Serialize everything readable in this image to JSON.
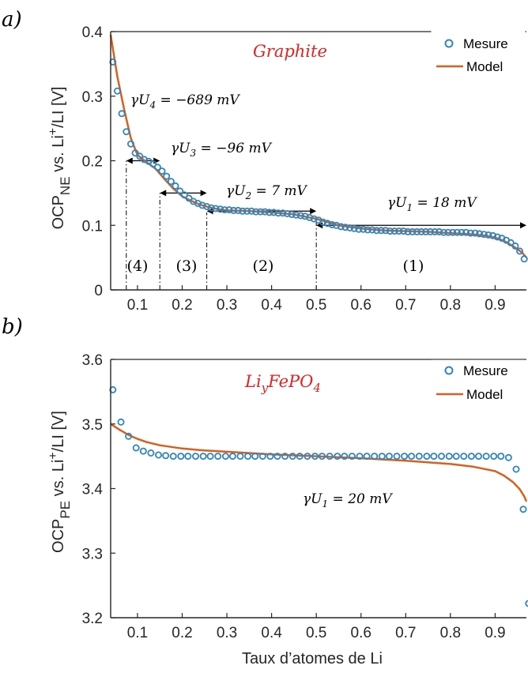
{
  "colors": {
    "measure": "#2E86C1",
    "model": "#D95F1E",
    "title_red": "#E8201E",
    "axis": "#262626"
  },
  "panels": [
    {
      "panel_label": "a)",
      "title_text": "Graphite",
      "ylabel": {
        "base": "OCP",
        "sub": "NE",
        "rest": " vs. Li",
        "sup": "+",
        "tail": "/LI [V]"
      },
      "legend": {
        "measure": "Mesure",
        "model": "Model"
      },
      "regions": [
        "(4)",
        "(3)",
        "(2)",
        "(1)"
      ],
      "annotations": [
        {
          "pre": "γU",
          "sub": "4",
          "post": " = −689 mV"
        },
        {
          "pre": "γU",
          "sub": "3",
          "post": " = −96 mV"
        },
        {
          "pre": "γU",
          "sub": "2",
          "post": " = 7 mV"
        },
        {
          "pre": "γU",
          "sub": "1",
          "post": " = 18 mV"
        }
      ]
    },
    {
      "panel_label": "b)",
      "title_text": {
        "a": "Li",
        "sub_y": "y",
        "b": "FePO",
        "sub_4": "4"
      },
      "ylabel": {
        "base": "OCP",
        "sub": "PE",
        "rest": " vs. Li",
        "sup": "+",
        "tail": "/LI [V]"
      },
      "legend": {
        "measure": "Mesure",
        "model": "Model"
      },
      "annotations": [
        {
          "pre": "γU",
          "sub": "1",
          "post": " = 20 mV"
        }
      ],
      "xlabel": "Taux d’atomes de Li"
    }
  ],
  "chart_data": [
    {
      "type": "scatter",
      "xlim": [
        0.04,
        0.97
      ],
      "ylim": [
        0,
        0.4
      ],
      "xticks": [
        "0.1",
        "0.2",
        "0.3",
        "0.4",
        "0.5",
        "0.6",
        "0.7",
        "0.8",
        "0.9"
      ],
      "xtick_values": [
        0.1,
        0.2,
        0.3,
        0.4,
        0.5,
        0.6,
        0.7,
        0.8,
        0.9
      ],
      "yticks": [
        "0",
        "0.1",
        "0.2",
        "0.3",
        "0.4"
      ],
      "ytick_values": [
        0,
        0.1,
        0.2,
        0.3,
        0.4
      ],
      "region_boundaries": [
        0.075,
        0.15,
        0.255,
        0.5
      ],
      "series": [
        {
          "name": "Mesure",
          "x": [
            0.045,
            0.055,
            0.065,
            0.075,
            0.085,
            0.095,
            0.105,
            0.115,
            0.125,
            0.135,
            0.145,
            0.155,
            0.165,
            0.175,
            0.185,
            0.195,
            0.205,
            0.215,
            0.225,
            0.235,
            0.245,
            0.255,
            0.265,
            0.275,
            0.285,
            0.295,
            0.305,
            0.315,
            0.325,
            0.335,
            0.345,
            0.355,
            0.365,
            0.375,
            0.385,
            0.395,
            0.405,
            0.415,
            0.425,
            0.435,
            0.445,
            0.455,
            0.465,
            0.475,
            0.485,
            0.495,
            0.505,
            0.515,
            0.525,
            0.535,
            0.545,
            0.555,
            0.565,
            0.575,
            0.585,
            0.595,
            0.605,
            0.615,
            0.625,
            0.635,
            0.645,
            0.655,
            0.665,
            0.675,
            0.685,
            0.695,
            0.705,
            0.715,
            0.725,
            0.735,
            0.745,
            0.755,
            0.765,
            0.775,
            0.785,
            0.795,
            0.805,
            0.815,
            0.825,
            0.835,
            0.845,
            0.855,
            0.865,
            0.875,
            0.885,
            0.895,
            0.905,
            0.915,
            0.925,
            0.935,
            0.945,
            0.955,
            0.965
          ],
          "y": [
            0.353,
            0.308,
            0.273,
            0.245,
            0.226,
            0.212,
            0.207,
            0.202,
            0.199,
            0.195,
            0.19,
            0.184,
            0.176,
            0.168,
            0.161,
            0.153,
            0.147,
            0.142,
            0.137,
            0.134,
            0.131,
            0.129,
            0.127,
            0.126,
            0.125,
            0.124,
            0.124,
            0.123,
            0.123,
            0.122,
            0.122,
            0.122,
            0.121,
            0.121,
            0.121,
            0.12,
            0.12,
            0.119,
            0.119,
            0.118,
            0.117,
            0.116,
            0.115,
            0.114,
            0.112,
            0.11,
            0.108,
            0.105,
            0.103,
            0.101,
            0.1,
            0.098,
            0.097,
            0.096,
            0.095,
            0.094,
            0.094,
            0.093,
            0.093,
            0.092,
            0.092,
            0.092,
            0.091,
            0.091,
            0.091,
            0.091,
            0.09,
            0.09,
            0.09,
            0.09,
            0.09,
            0.09,
            0.09,
            0.09,
            0.089,
            0.089,
            0.089,
            0.089,
            0.089,
            0.089,
            0.088,
            0.088,
            0.087,
            0.086,
            0.085,
            0.084,
            0.082,
            0.08,
            0.077,
            0.073,
            0.068,
            0.06,
            0.048
          ]
        },
        {
          "name": "Model",
          "x": [
            0.04,
            0.055,
            0.07,
            0.085,
            0.1,
            0.12,
            0.14,
            0.16,
            0.18,
            0.2,
            0.22,
            0.24,
            0.26,
            0.28,
            0.3,
            0.35,
            0.4,
            0.45,
            0.5,
            0.55,
            0.6,
            0.65,
            0.7,
            0.75,
            0.8,
            0.85,
            0.88,
            0.9,
            0.92,
            0.94,
            0.96,
            0.97
          ],
          "y": [
            0.395,
            0.33,
            0.28,
            0.235,
            0.209,
            0.198,
            0.188,
            0.172,
            0.157,
            0.145,
            0.138,
            0.132,
            0.128,
            0.125,
            0.123,
            0.122,
            0.12,
            0.117,
            0.11,
            0.1,
            0.095,
            0.092,
            0.091,
            0.09,
            0.088,
            0.086,
            0.084,
            0.081,
            0.076,
            0.068,
            0.058,
            0.05
          ]
        }
      ]
    },
    {
      "type": "scatter",
      "xlim": [
        0.04,
        0.97
      ],
      "ylim": [
        3.2,
        3.6
      ],
      "xticks": [
        "0.1",
        "0.2",
        "0.3",
        "0.4",
        "0.5",
        "0.6",
        "0.7",
        "0.8",
        "0.9"
      ],
      "xtick_values": [
        0.1,
        0.2,
        0.3,
        0.4,
        0.5,
        0.6,
        0.7,
        0.8,
        0.9
      ],
      "yticks": [
        "3.2",
        "3.3",
        "3.4",
        "3.5",
        "3.6"
      ],
      "ytick_values": [
        3.2,
        3.3,
        3.4,
        3.5,
        3.6
      ],
      "series": [
        {
          "name": "Mesure",
          "x": [
            0.045,
            0.063,
            0.08,
            0.097,
            0.113,
            0.13,
            0.147,
            0.163,
            0.18,
            0.197,
            0.213,
            0.23,
            0.247,
            0.263,
            0.28,
            0.297,
            0.313,
            0.33,
            0.347,
            0.363,
            0.38,
            0.397,
            0.413,
            0.43,
            0.447,
            0.463,
            0.48,
            0.497,
            0.513,
            0.53,
            0.547,
            0.563,
            0.58,
            0.597,
            0.613,
            0.63,
            0.647,
            0.663,
            0.68,
            0.697,
            0.713,
            0.73,
            0.747,
            0.763,
            0.78,
            0.797,
            0.813,
            0.83,
            0.847,
            0.863,
            0.88,
            0.897,
            0.913,
            0.93,
            0.947,
            0.963,
            0.975
          ],
          "y": [
            3.553,
            3.503,
            3.481,
            3.463,
            3.458,
            3.455,
            3.452,
            3.451,
            3.45,
            3.45,
            3.45,
            3.45,
            3.45,
            3.45,
            3.45,
            3.45,
            3.45,
            3.45,
            3.45,
            3.45,
            3.45,
            3.45,
            3.45,
            3.45,
            3.45,
            3.45,
            3.45,
            3.45,
            3.45,
            3.45,
            3.45,
            3.45,
            3.45,
            3.45,
            3.45,
            3.45,
            3.45,
            3.45,
            3.45,
            3.45,
            3.45,
            3.45,
            3.45,
            3.45,
            3.45,
            3.45,
            3.45,
            3.45,
            3.45,
            3.45,
            3.45,
            3.45,
            3.45,
            3.448,
            3.43,
            3.368,
            3.222
          ]
        },
        {
          "name": "Model",
          "x": [
            0.04,
            0.06,
            0.08,
            0.1,
            0.12,
            0.15,
            0.2,
            0.25,
            0.3,
            0.4,
            0.5,
            0.6,
            0.7,
            0.8,
            0.85,
            0.9,
            0.92,
            0.94,
            0.955,
            0.965,
            0.97
          ],
          "y": [
            3.5,
            3.491,
            3.483,
            3.477,
            3.472,
            3.467,
            3.462,
            3.459,
            3.457,
            3.453,
            3.45,
            3.447,
            3.443,
            3.438,
            3.434,
            3.427,
            3.42,
            3.41,
            3.399,
            3.388,
            3.38
          ]
        }
      ]
    }
  ]
}
